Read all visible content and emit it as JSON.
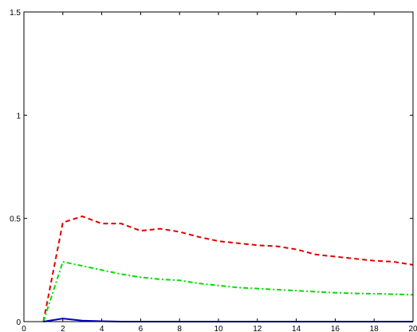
{
  "chart_data": {
    "type": "line",
    "title": "",
    "xlabel": "",
    "ylabel": "",
    "xlim": [
      0,
      20
    ],
    "ylim": [
      0,
      1.5
    ],
    "xticks": [
      0,
      2,
      4,
      6,
      8,
      10,
      12,
      14,
      16,
      18,
      20
    ],
    "xtick_labels": [
      "0",
      "2",
      "4",
      "6",
      "8",
      "10",
      "12",
      "14",
      "16",
      "18",
      "20"
    ],
    "yticks": [
      0,
      0.5,
      1,
      1.5
    ],
    "ytick_labels": [
      "0",
      "0.5",
      "1",
      "1.5"
    ],
    "grid": false,
    "x": [
      1,
      2,
      3,
      4,
      5,
      6,
      7,
      8,
      9,
      10,
      11,
      12,
      13,
      14,
      15,
      16,
      17,
      18,
      19,
      20
    ],
    "series": [
      {
        "color": "#e00000",
        "line_style": "dashed",
        "values": [
          0,
          0.48,
          0.51,
          0.475,
          0.475,
          0.44,
          0.45,
          0.435,
          0.41,
          0.39,
          0.38,
          0.37,
          0.365,
          0.35,
          0.325,
          0.315,
          0.305,
          0.295,
          0.29,
          0.275
        ]
      },
      {
        "color": "#00e000",
        "line_style": "dashdot",
        "values": [
          0,
          0.29,
          0.27,
          0.25,
          0.23,
          0.215,
          0.205,
          0.2,
          0.185,
          0.175,
          0.165,
          0.16,
          0.155,
          0.15,
          0.145,
          0.14,
          0.137,
          0.135,
          0.133,
          0.13
        ]
      },
      {
        "color": "#0000cc",
        "line_style": "solid",
        "values": [
          0,
          0.015,
          0.005,
          0.002,
          0,
          0,
          0,
          0,
          0,
          0,
          0,
          0,
          0,
          0,
          0,
          0,
          0,
          0,
          0,
          0
        ]
      }
    ]
  }
}
